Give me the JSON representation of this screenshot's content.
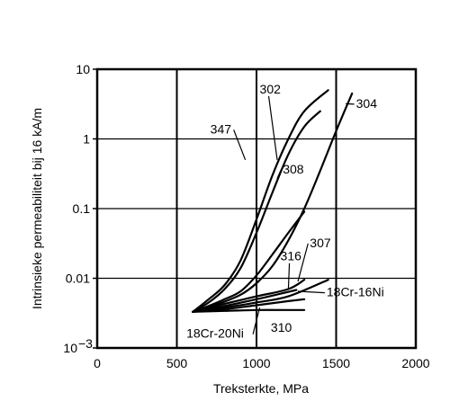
{
  "chart_data": {
    "type": "line",
    "title": "",
    "xlabel": "Treksterkte, MPa",
    "ylabel": "Intrinsieke permeabiliteit bij 16 kA/m",
    "xlim": [
      0,
      2000
    ],
    "ylim": [
      0.001,
      10
    ],
    "y_scale": "log",
    "grid": true,
    "x_ticks": [
      {
        "value": 0,
        "label": "0"
      },
      {
        "value": 500,
        "label": "500"
      },
      {
        "value": 1000,
        "label": "1000"
      },
      {
        "value": 1500,
        "label": "1500"
      },
      {
        "value": 2000,
        "label": "2000"
      }
    ],
    "y_ticks": [
      {
        "value": 0.001,
        "label": "10",
        "sup": "−3"
      },
      {
        "value": 0.01,
        "label": "0.01"
      },
      {
        "value": 0.1,
        "label": "0.1"
      },
      {
        "value": 1,
        "label": "1"
      },
      {
        "value": 10,
        "label": "10"
      }
    ],
    "series": [
      {
        "name": "302",
        "x": [
          600,
          700,
          800,
          900,
          1000,
          1100,
          1200,
          1300,
          1450
        ],
        "y": [
          0.0033,
          0.005,
          0.008,
          0.018,
          0.07,
          0.3,
          1.0,
          2.5,
          5.0
        ]
      },
      {
        "name": "347",
        "x": [
          600,
          700,
          800,
          900,
          1000,
          1100,
          1200,
          1300,
          1400
        ],
        "y": [
          0.0033,
          0.0045,
          0.007,
          0.014,
          0.045,
          0.17,
          0.6,
          1.5,
          2.5
        ]
      },
      {
        "name": "304",
        "x": [
          600,
          750,
          900,
          1000,
          1100,
          1200,
          1300,
          1400,
          1500,
          1600
        ],
        "y": [
          0.0033,
          0.0042,
          0.0058,
          0.0085,
          0.015,
          0.035,
          0.1,
          0.35,
          1.3,
          4.5
        ]
      },
      {
        "name": "308",
        "x": [
          600,
          700,
          800,
          900,
          1000,
          1100,
          1200,
          1300
        ],
        "y": [
          0.0033,
          0.004,
          0.005,
          0.0065,
          0.011,
          0.022,
          0.045,
          0.09
        ]
      },
      {
        "name": "307",
        "x": [
          600,
          800,
          1000,
          1200,
          1300
        ],
        "y": [
          0.0033,
          0.0043,
          0.0055,
          0.007,
          0.0095
        ]
      },
      {
        "name": "316",
        "x": [
          600,
          800,
          1000,
          1150,
          1250
        ],
        "y": [
          0.0033,
          0.004,
          0.005,
          0.006,
          0.0068
        ]
      },
      {
        "name": "18Cr-16Ni",
        "x": [
          600,
          800,
          1000,
          1200,
          1450
        ],
        "y": [
          0.0033,
          0.0038,
          0.0045,
          0.0055,
          0.0095
        ]
      },
      {
        "name": "18Cr-20Ni",
        "x": [
          600,
          800,
          1000,
          1200,
          1300
        ],
        "y": [
          0.0033,
          0.0036,
          0.0041,
          0.0047,
          0.005
        ]
      },
      {
        "name": "310",
        "x": [
          600,
          800,
          1000,
          1200,
          1300
        ],
        "y": [
          0.0033,
          0.0034,
          0.0035,
          0.0035,
          0.0035
        ]
      }
    ],
    "annotations": [
      {
        "label": "302",
        "x": 1020,
        "y": 4.5,
        "line_to": [
          1130,
          0.5
        ]
      },
      {
        "label": "304",
        "x": 1625,
        "y": 2.8,
        "line_to": [
          1560,
          3.2
        ]
      },
      {
        "label": "347",
        "x": 710,
        "y": 1.2,
        "line_to": [
          930,
          0.5
        ]
      },
      {
        "label": "308",
        "x": 1165,
        "y": 0.32,
        "line_to": [
          1130,
          0.27
        ]
      },
      {
        "label": "307",
        "x": 1335,
        "y": 0.028,
        "line_to": [
          1260,
          0.009
        ]
      },
      {
        "label": "316",
        "x": 1150,
        "y": 0.018,
        "line_to": [
          1200,
          0.0068
        ]
      },
      {
        "label": "18Cr-16Ni",
        "x": 1440,
        "y": 0.0055,
        "line_to": [
          1260,
          0.0065
        ]
      },
      {
        "label": "18Cr-20Ni",
        "x": 560,
        "y": 0.0014,
        "line_to": [
          1020,
          0.0038
        ]
      },
      {
        "label": "310",
        "x": 1090,
        "y": 0.0017,
        "line_to": null
      }
    ]
  }
}
